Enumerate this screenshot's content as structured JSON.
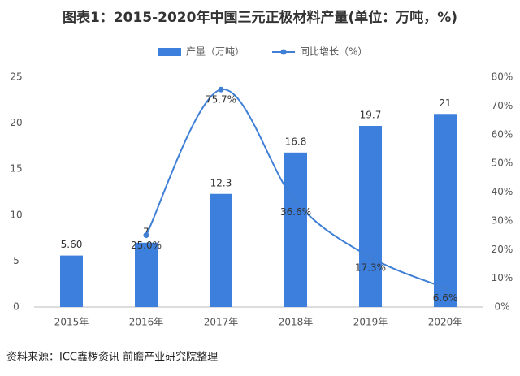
{
  "chart_data": {
    "type": "bar",
    "title": "图表1：2015-2020年中国三元正极材料产量(单位：万吨，%)",
    "source": "资料来源：ICC鑫椤资讯 前瞻产业研究院整理",
    "categories": [
      "2015年",
      "2016年",
      "2017年",
      "2018年",
      "2019年",
      "2020年"
    ],
    "series": [
      {
        "name": "产量（万吨）",
        "color": "#3c7fdc",
        "values": [
          5.6,
          7,
          12.3,
          16.8,
          19.7,
          21
        ],
        "value_labels": [
          "5.60",
          "7",
          "12.3",
          "16.8",
          "19.7",
          "21"
        ]
      },
      {
        "name": "同比增长（%）",
        "color": "#3f7fd6",
        "type": "line",
        "axis": "y2",
        "values": [
          null,
          25.0,
          75.7,
          36.6,
          17.3,
          6.6
        ],
        "value_labels": [
          null,
          "25.0%",
          "75.7%",
          "36.6%",
          "17.3%",
          "6.6%"
        ]
      }
    ],
    "ylim": [
      0,
      25
    ],
    "yticks": [
      0,
      5,
      10,
      15,
      20,
      25
    ],
    "y2lim": [
      0,
      80
    ],
    "y2ticks": [
      {
        "value": 0,
        "label": "0%"
      },
      {
        "value": 10,
        "label": "10%"
      },
      {
        "value": 20,
        "label": "20%"
      },
      {
        "value": 30,
        "label": "30%"
      },
      {
        "value": 40,
        "label": "40%"
      },
      {
        "value": 50,
        "label": "50%"
      },
      {
        "value": 60,
        "label": "60%"
      },
      {
        "value": 70,
        "label": "70%"
      },
      {
        "value": 80,
        "label": "80%"
      }
    ],
    "grid": false
  }
}
